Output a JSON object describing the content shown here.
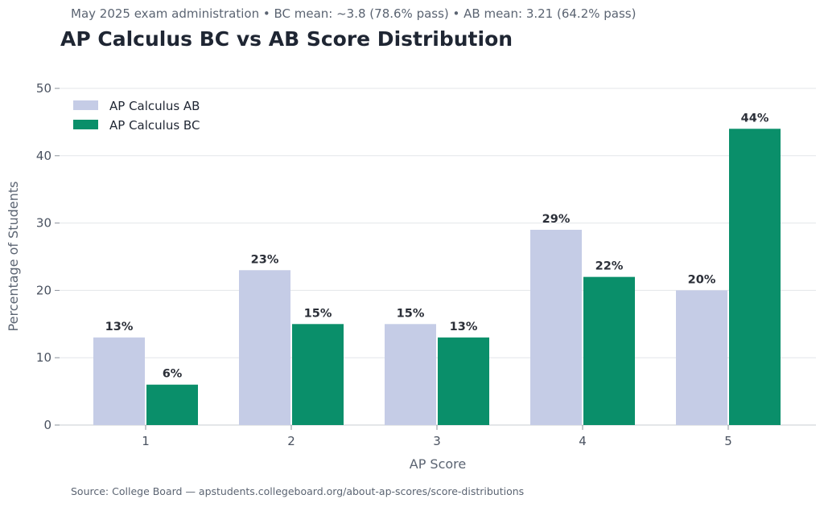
{
  "header": {
    "subtitle": "May 2025 exam administration • BC mean: ~3.8 (78.6% pass) • AB mean: 3.21 (64.2% pass)",
    "title": "AP Calculus BC vs AB Score Distribution"
  },
  "footer": {
    "source": "Source: College Board — apstudents.collegeboard.org/about-ap-scores/score-distributions"
  },
  "chart_data": {
    "type": "bar",
    "title": "AP Calculus BC vs AB Score Distribution",
    "subtitle": "May 2025 exam administration • BC mean: ~3.8 (78.6% pass) • AB mean: 3.21 (64.2% pass)",
    "xlabel": "AP Score",
    "ylabel": "Percentage of Students",
    "categories": [
      "1",
      "2",
      "3",
      "4",
      "5"
    ],
    "ylim": [
      0,
      50
    ],
    "yticks": [
      0,
      10,
      20,
      30,
      40,
      50
    ],
    "grid": true,
    "legend_position": "top-left",
    "series": [
      {
        "name": "AP Calculus AB",
        "color": "#c5cce6",
        "values": [
          13,
          23,
          15,
          29,
          20
        ],
        "labels": [
          "13%",
          "23%",
          "15%",
          "29%",
          "20%"
        ]
      },
      {
        "name": "AP Calculus BC",
        "color": "#0a8f6a",
        "values": [
          6,
          15,
          13,
          22,
          44
        ],
        "labels": [
          "6%",
          "15%",
          "13%",
          "22%",
          "44%"
        ]
      }
    ]
  }
}
